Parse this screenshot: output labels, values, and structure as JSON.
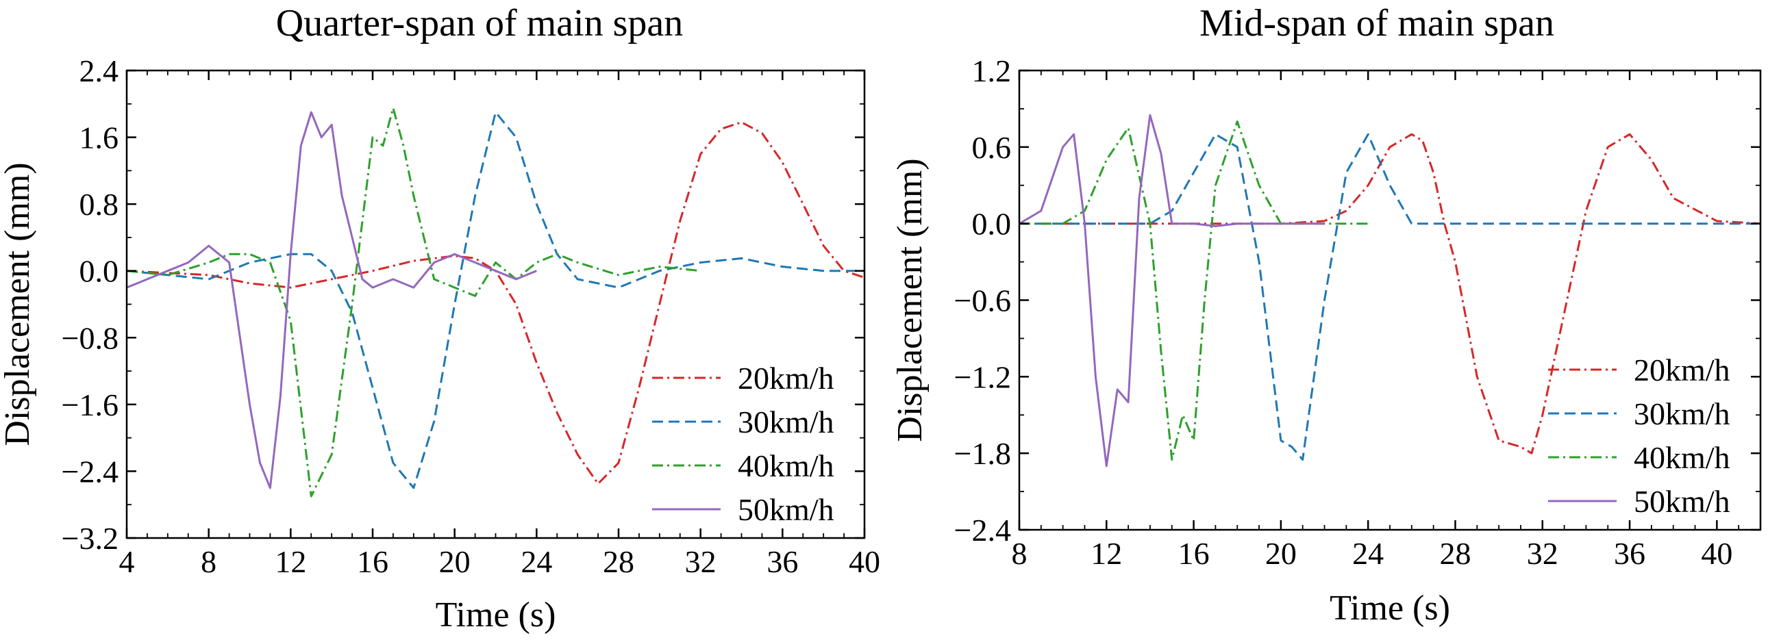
{
  "chart_data": [
    {
      "type": "line",
      "title": "Quarter-span of main span",
      "xlabel": "Time (s)",
      "ylabel": "Displacement (mm)",
      "xlim": [
        4,
        40
      ],
      "ylim": [
        -3.2,
        2.4
      ],
      "xticks": [
        4,
        8,
        12,
        16,
        20,
        24,
        28,
        32,
        36,
        40
      ],
      "yticks": [
        -3.2,
        -2.4,
        -1.6,
        -0.8,
        0.0,
        0.8,
        1.6,
        2.4
      ],
      "xtick_labels": [
        "4",
        "8",
        "12",
        "16",
        "20",
        "24",
        "28",
        "32",
        "36",
        "40"
      ],
      "ytick_labels": [
        "−3.2",
        "−2.4",
        "−1.6",
        "−0.8",
        "0.0",
        "0.8",
        "1.6",
        "2.4"
      ],
      "legend_position": "lower-right",
      "series": [
        {
          "name": "20km/h",
          "color": "#d62728",
          "dash": "dashdot",
          "x": [
            4,
            8,
            10,
            12,
            14,
            16,
            18,
            20,
            21,
            22,
            23,
            24,
            25,
            26,
            27,
            28,
            29,
            30,
            31,
            32,
            33,
            34,
            35,
            36,
            37,
            38,
            39,
            40
          ],
          "y": [
            0.0,
            -0.05,
            -0.15,
            -0.2,
            -0.1,
            0.0,
            0.12,
            0.18,
            0.15,
            0.0,
            -0.4,
            -1.1,
            -1.7,
            -2.2,
            -2.55,
            -2.3,
            -1.4,
            -0.4,
            0.6,
            1.4,
            1.7,
            1.78,
            1.65,
            1.3,
            0.8,
            0.3,
            0.0,
            -0.08
          ]
        },
        {
          "name": "30km/h",
          "color": "#1f77b4",
          "dash": "dashed",
          "x": [
            4,
            6,
            8,
            10,
            12,
            13,
            14,
            15,
            16,
            17,
            18,
            19,
            20,
            21,
            22,
            23,
            24,
            25,
            26,
            27,
            28,
            30,
            32,
            34,
            36,
            38,
            40
          ],
          "y": [
            0.0,
            -0.05,
            -0.1,
            0.1,
            0.2,
            0.2,
            0.0,
            -0.5,
            -1.4,
            -2.3,
            -2.6,
            -1.8,
            -0.4,
            0.9,
            1.9,
            1.6,
            0.8,
            0.2,
            -0.1,
            -0.15,
            -0.2,
            0.0,
            0.1,
            0.15,
            0.05,
            0.0,
            0.0
          ]
        },
        {
          "name": "40km/h",
          "color": "#2ca02c",
          "dash": "dashdot",
          "x": [
            4,
            6,
            8,
            9,
            10,
            11,
            12,
            13,
            14,
            15,
            16,
            16.5,
            17,
            17.5,
            18,
            19,
            20,
            21,
            22,
            23,
            24,
            25,
            26,
            28,
            30,
            32
          ],
          "y": [
            0.0,
            -0.05,
            0.1,
            0.2,
            0.2,
            0.1,
            -0.6,
            -2.7,
            -2.2,
            -0.4,
            1.6,
            1.5,
            1.95,
            1.5,
            0.9,
            -0.1,
            -0.2,
            -0.3,
            0.1,
            -0.1,
            0.1,
            0.2,
            0.1,
            -0.05,
            0.05,
            0.0
          ]
        },
        {
          "name": "50km/h",
          "color": "#9467bd",
          "dash": "solid",
          "x": [
            4,
            5,
            6,
            7,
            8,
            9,
            10,
            10.5,
            11,
            11.5,
            12,
            12.5,
            13,
            13.5,
            14,
            14.5,
            15,
            15.5,
            16,
            17,
            18,
            19,
            20,
            21,
            22,
            23,
            24
          ],
          "y": [
            -0.2,
            -0.1,
            0.0,
            0.1,
            0.3,
            0.1,
            -1.6,
            -2.3,
            -2.6,
            -1.5,
            0.2,
            1.5,
            1.9,
            1.6,
            1.75,
            0.9,
            0.4,
            -0.1,
            -0.2,
            -0.1,
            -0.2,
            0.1,
            0.2,
            0.1,
            0.0,
            -0.1,
            0.0
          ]
        }
      ]
    },
    {
      "type": "line",
      "title": "Mid-span of main span",
      "xlabel": "Time (s)",
      "ylabel": "Displacement (mm)",
      "xlim": [
        8,
        42
      ],
      "ylim": [
        -2.4,
        1.2
      ],
      "xticks": [
        8,
        12,
        16,
        20,
        24,
        28,
        32,
        36,
        40
      ],
      "yticks": [
        -2.4,
        -1.8,
        -1.2,
        -0.6,
        0.0,
        0.6,
        1.2
      ],
      "xtick_labels": [
        "8",
        "12",
        "16",
        "20",
        "24",
        "28",
        "32",
        "36",
        "40"
      ],
      "ytick_labels": [
        "−2.4",
        "−1.8",
        "−1.2",
        "−0.6",
        "0.0",
        "0.6",
        "1.2"
      ],
      "legend_position": "lower-right",
      "series": [
        {
          "name": "20km/h",
          "color": "#d62728",
          "dash": "dashdot",
          "x": [
            8,
            12,
            16,
            20,
            22,
            23,
            24,
            25,
            26,
            26.5,
            27,
            27.5,
            28,
            29,
            30,
            31,
            31.5,
            32,
            33,
            34,
            35,
            36,
            37,
            38,
            40,
            42
          ],
          "y": [
            0.0,
            0.0,
            0.0,
            0.0,
            0.02,
            0.1,
            0.3,
            0.6,
            0.7,
            0.65,
            0.4,
            0.0,
            -0.3,
            -1.2,
            -1.7,
            -1.75,
            -1.8,
            -1.5,
            -0.7,
            0.1,
            0.6,
            0.7,
            0.5,
            0.2,
            0.02,
            0.0
          ]
        },
        {
          "name": "30km/h",
          "color": "#1f77b4",
          "dash": "dashed",
          "x": [
            8,
            12,
            14,
            15,
            16,
            17,
            18,
            19,
            20,
            20.5,
            21,
            22,
            23,
            24,
            25,
            26,
            28,
            32,
            36,
            40,
            42
          ],
          "y": [
            0.0,
            0.0,
            0.0,
            0.1,
            0.4,
            0.7,
            0.6,
            -0.3,
            -1.7,
            -1.75,
            -1.85,
            -0.6,
            0.4,
            0.7,
            0.3,
            0.0,
            0.0,
            0.0,
            0.0,
            0.0,
            0.0
          ]
        },
        {
          "name": "40km/h",
          "color": "#2ca02c",
          "dash": "dashdot",
          "x": [
            8,
            10,
            11,
            12,
            13,
            14,
            14.5,
            15,
            15.5,
            16,
            16.5,
            17,
            18,
            19,
            20,
            22,
            24
          ],
          "y": [
            0.0,
            0.0,
            0.1,
            0.5,
            0.75,
            0.0,
            -1.0,
            -1.85,
            -1.5,
            -1.7,
            -0.6,
            0.3,
            0.8,
            0.3,
            0.0,
            0.0,
            0.0
          ]
        },
        {
          "name": "50km/h",
          "color": "#9467bd",
          "dash": "solid",
          "x": [
            8,
            9,
            10,
            10.5,
            11,
            11.5,
            12,
            12.5,
            13,
            13.5,
            14,
            14.5,
            15,
            16,
            17,
            18,
            20,
            22
          ],
          "y": [
            0.0,
            0.1,
            0.6,
            0.7,
            0.0,
            -1.2,
            -1.9,
            -1.3,
            -1.4,
            0.2,
            0.85,
            0.55,
            0.0,
            0.0,
            -0.02,
            0.0,
            0.0,
            0.0
          ]
        }
      ]
    }
  ]
}
